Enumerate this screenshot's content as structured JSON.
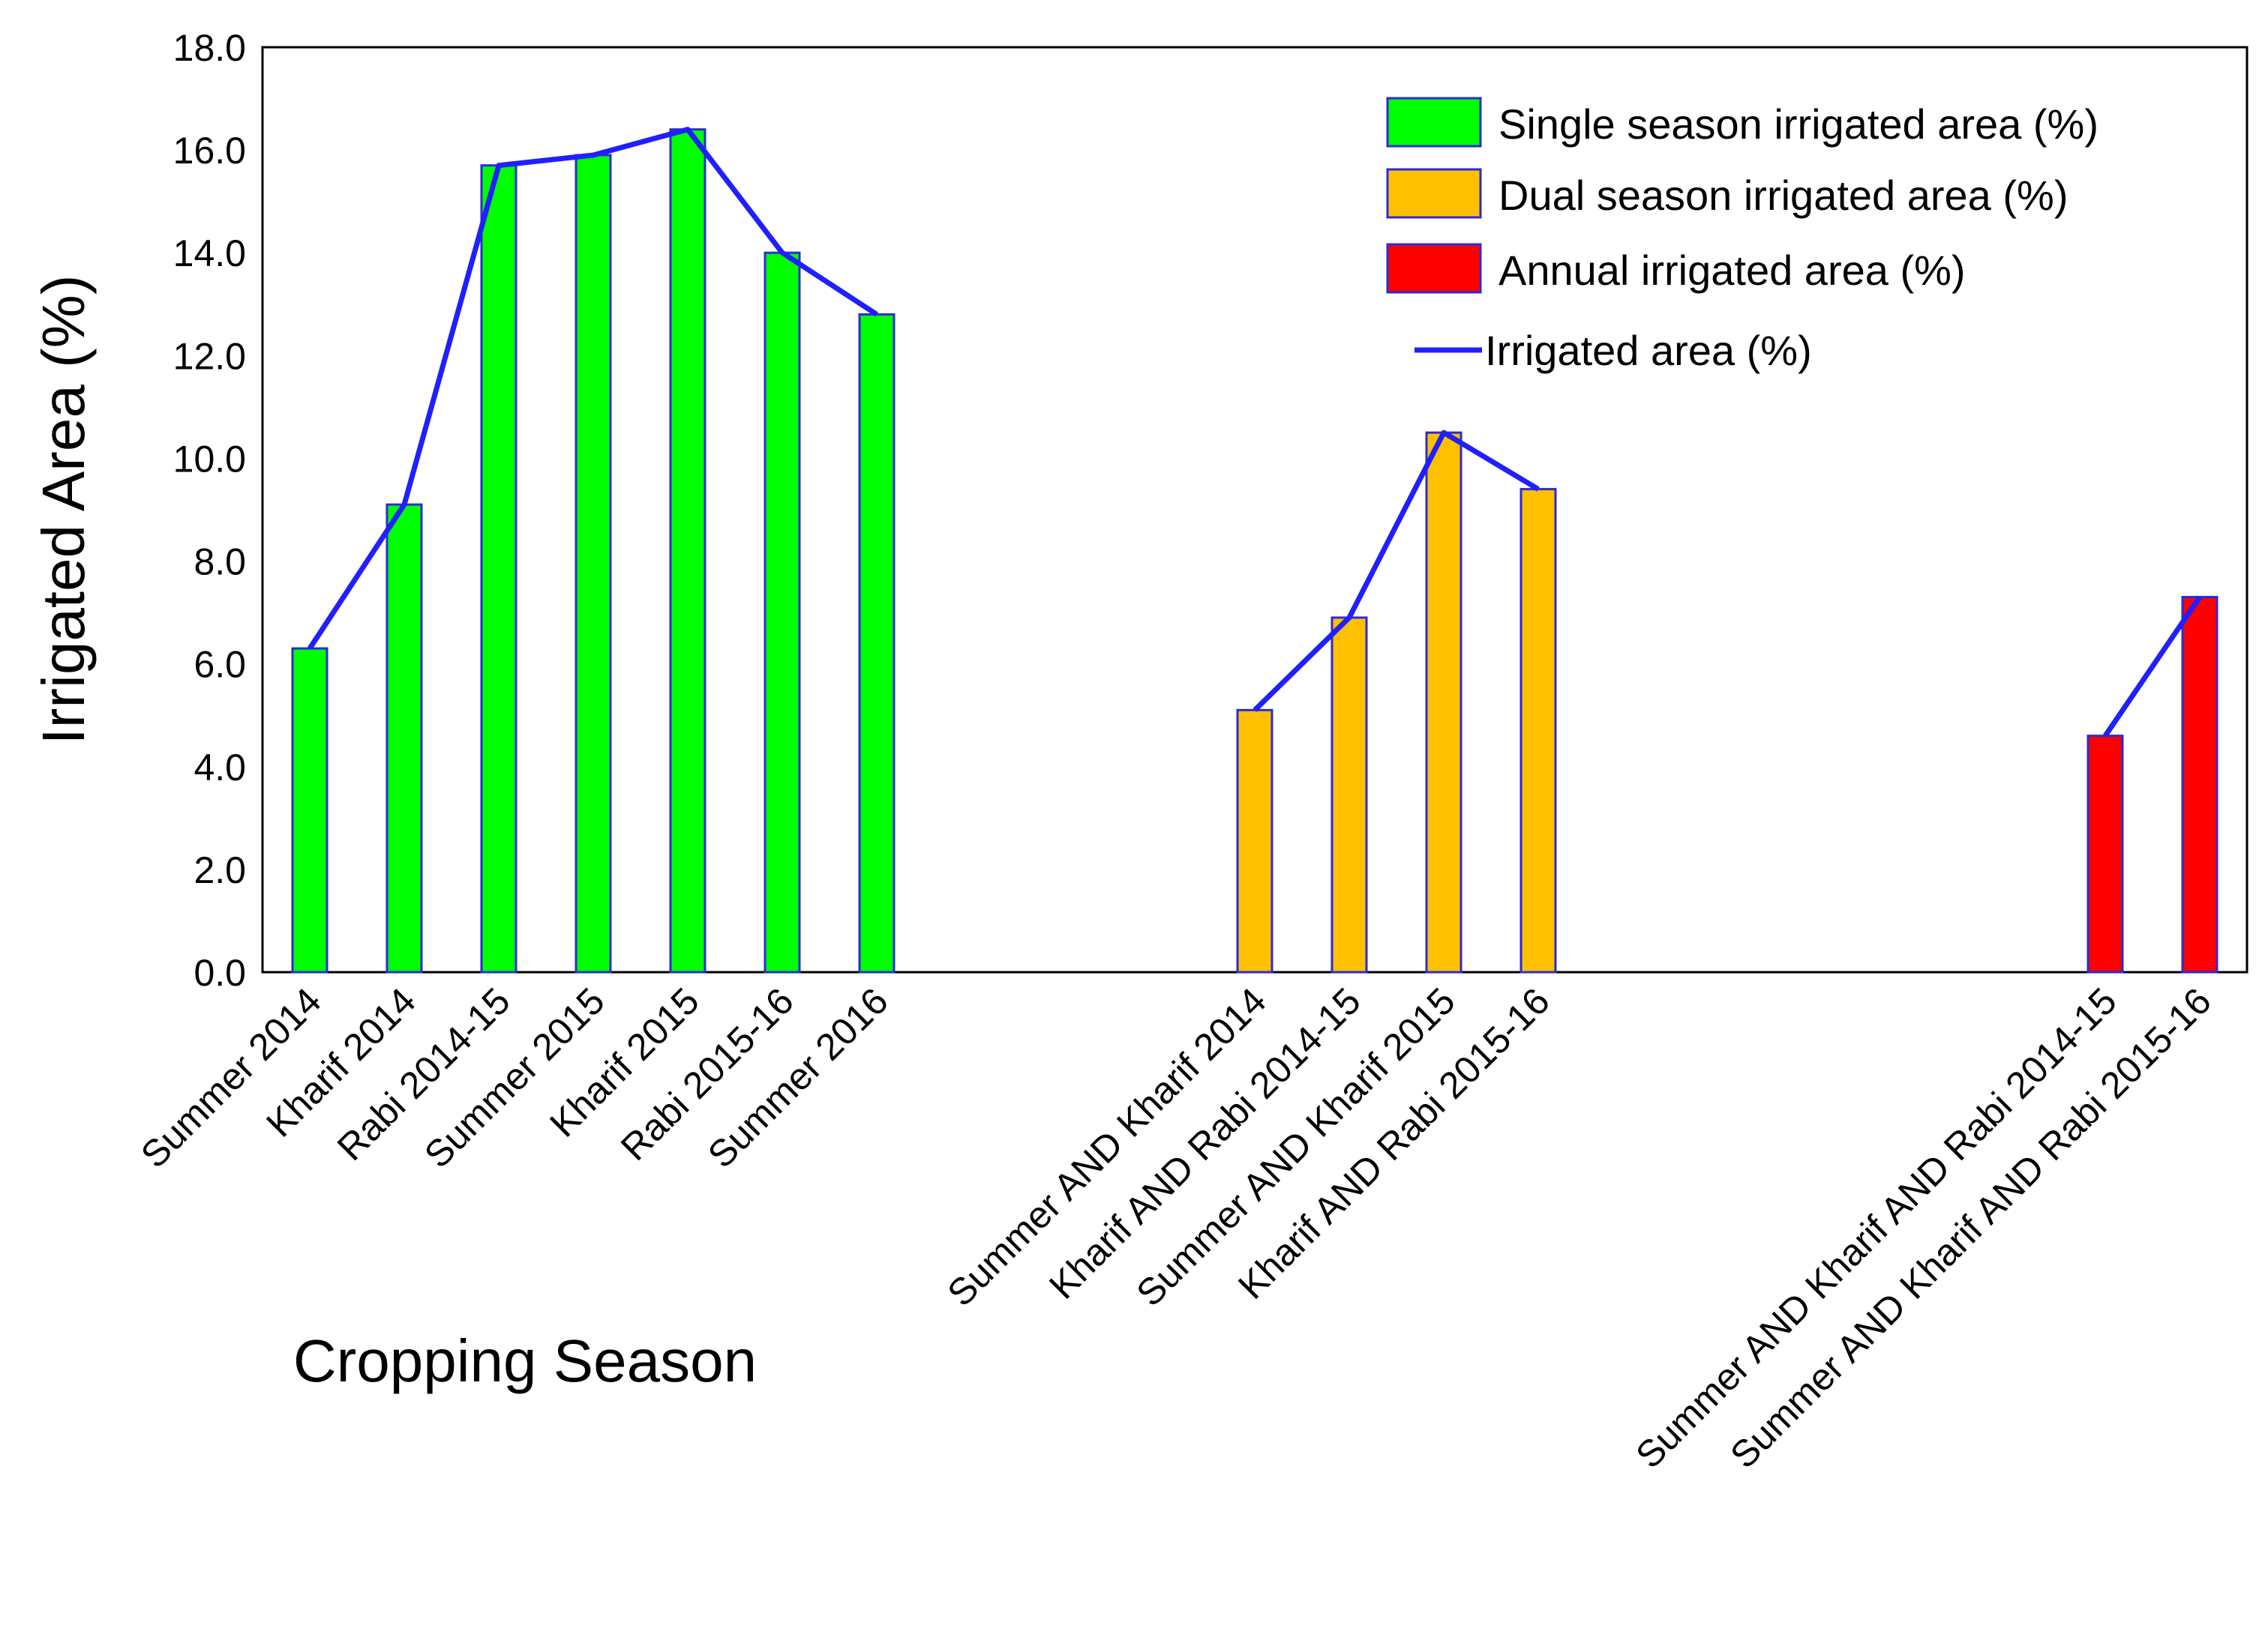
{
  "chart_data": {
    "type": "bar",
    "title": "",
    "xlabel": "Cropping Season",
    "ylabel": "Irrigated Area (%)",
    "ylim": [
      0,
      18
    ],
    "yticks": [
      "0.0",
      "2.0",
      "4.0",
      "6.0",
      "8.0",
      "10.0",
      "12.0",
      "14.0",
      "16.0",
      "18.0"
    ],
    "grid": false,
    "legend_position": "top-right",
    "categories": [
      "Summer 2014",
      "Kharif 2014",
      "Rabi 2014-15",
      "Summer 2015",
      "Kharif 2015",
      "Rabi 2015-16",
      "Summer 2016",
      "",
      "",
      "",
      "Summer AND Kharif 2014",
      "Kharif AND Rabi 2014-15",
      "Summer AND Kharif 2015",
      "Kharif AND Rabi 2015-16",
      "",
      "",
      "",
      "",
      "",
      "Summer AND Kharif AND Rabi 2014-15",
      "Summer AND Kharif AND Rabi 2015-16"
    ],
    "series": [
      {
        "name": "Single season irrigated area (%)",
        "kind": "bar",
        "color": "#00ff00",
        "values": [
          6.3,
          9.1,
          15.7,
          15.9,
          16.4,
          14.0,
          12.8,
          null,
          null,
          null,
          null,
          null,
          null,
          null,
          null,
          null,
          null,
          null,
          null,
          null,
          null
        ]
      },
      {
        "name": "Dual season irrigated area (%)",
        "kind": "bar",
        "color": "#ffc000",
        "values": [
          null,
          null,
          null,
          null,
          null,
          null,
          null,
          null,
          null,
          null,
          5.1,
          6.9,
          10.5,
          9.4,
          null,
          null,
          null,
          null,
          null,
          null,
          null
        ]
      },
      {
        "name": "Annual irrigated area (%)",
        "kind": "bar",
        "color": "#ff0000",
        "values": [
          null,
          null,
          null,
          null,
          null,
          null,
          null,
          null,
          null,
          null,
          null,
          null,
          null,
          null,
          null,
          null,
          null,
          null,
          null,
          4.6,
          7.3
        ]
      },
      {
        "name": "Irrigated area (%)",
        "kind": "line",
        "color": "#1f1fff",
        "values": [
          6.3,
          9.1,
          15.7,
          15.9,
          16.4,
          14.0,
          12.8,
          null,
          null,
          null,
          5.1,
          6.9,
          10.5,
          9.4,
          null,
          null,
          null,
          null,
          null,
          4.6,
          7.3
        ]
      }
    ]
  }
}
